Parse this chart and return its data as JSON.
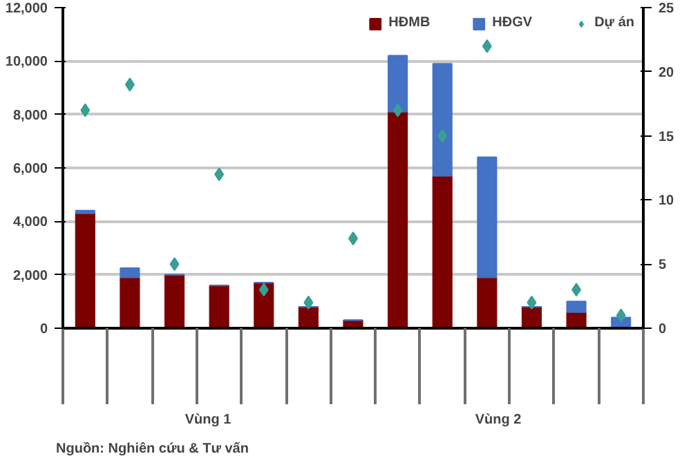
{
  "chart_data": {
    "type": "bar",
    "stacked": true,
    "categories": [
      null,
      null,
      null,
      null,
      null,
      null,
      null,
      null,
      null,
      null,
      null,
      null,
      null
    ],
    "series": [
      {
        "name": "HĐMB",
        "color": "#7b0000",
        "values": [
          4300,
          1900,
          2000,
          1600,
          1700,
          800,
          300,
          8100,
          5700,
          1900,
          800,
          600,
          0
        ]
      },
      {
        "name": "HĐGV",
        "color": "#4472c4",
        "values": [
          100,
          350,
          0,
          0,
          0,
          0,
          0,
          2100,
          4200,
          4500,
          0,
          400,
          400
        ]
      },
      {
        "name": "Dự án",
        "color": "#3a9e94",
        "type": "scatter",
        "marker": "diamond",
        "axis": "y2",
        "values": [
          17,
          19,
          5,
          12,
          3,
          2,
          7,
          17,
          15,
          22,
          2,
          3,
          1
        ]
      }
    ],
    "ylim": [
      0,
      12000
    ],
    "yticks": [
      {
        "value": 0,
        "label": "0"
      },
      {
        "value": 2000,
        "label": "2,000"
      },
      {
        "value": 4000,
        "label": "4,000"
      },
      {
        "value": 6000,
        "label": "6,000"
      },
      {
        "value": 8000,
        "label": "8,000"
      },
      {
        "value": 10000,
        "label": "10,000"
      },
      {
        "value": 12000,
        "label": "12,000"
      }
    ],
    "y2lim": [
      0,
      25
    ],
    "y2ticks": [
      0,
      5,
      10,
      15,
      20,
      25
    ],
    "grid": "y",
    "legend": "top",
    "annotations": [
      "Vùng 1",
      "Vùng 2",
      "Nguồn: Nghiên cứu & Tư vấn"
    ]
  }
}
